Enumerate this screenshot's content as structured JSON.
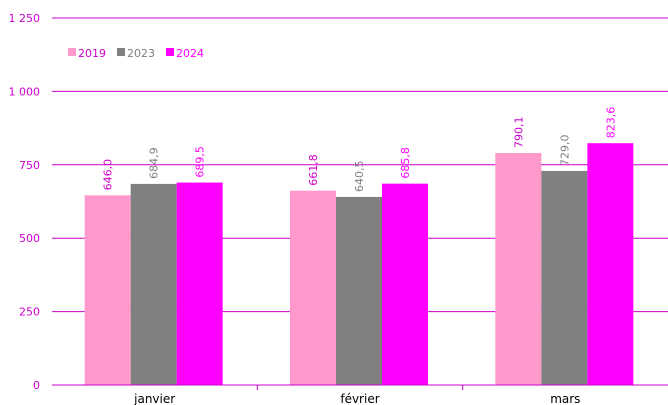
{
  "chart_data": {
    "type": "bar",
    "categories": [
      "janvier",
      "février",
      "mars"
    ],
    "series": [
      {
        "name": "2019",
        "values": [
          646.0,
          661.8,
          790.1
        ],
        "labels": [
          "646,0",
          "661,8",
          "790,1"
        ]
      },
      {
        "name": "2023",
        "values": [
          684.9,
          640.5,
          729.0
        ],
        "labels": [
          "684,9",
          "640,5",
          "729,0"
        ]
      },
      {
        "name": "2024",
        "values": [
          689.5,
          685.8,
          823.6
        ],
        "labels": [
          "689,5",
          "685,8",
          "823,6"
        ]
      }
    ],
    "ylim": [
      0,
      1250
    ],
    "yticks": [
      0,
      250,
      500,
      750,
      1000,
      1250
    ],
    "ytick_labels": [
      "0",
      "250",
      "500",
      "750",
      "1 000",
      "1 250"
    ],
    "grid": true,
    "legend": "top-left",
    "data_labels": "vertical, above bars"
  },
  "colors": {
    "series": [
      "#ff99cc",
      "#808080",
      "#ff00ff"
    ],
    "axis_text": "#cc00cc",
    "label_2019": "#cc00cc",
    "label_2023": "#808080",
    "label_2024": "#ff00ff",
    "grid": "#cc00cc"
  }
}
